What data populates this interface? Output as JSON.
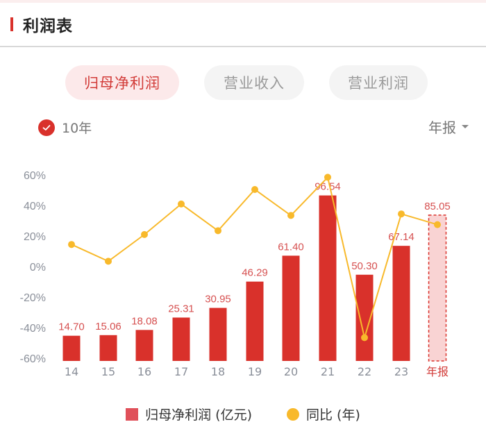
{
  "header": {
    "title": "利润表"
  },
  "tabs": [
    {
      "label": "归母净利润",
      "active": true
    },
    {
      "label": "营业收入",
      "active": false
    },
    {
      "label": "营业利润",
      "active": false
    }
  ],
  "range": {
    "label": "10年",
    "checked": true
  },
  "period": {
    "label": "年报"
  },
  "legend": {
    "bar": "归母净利润 (亿元)",
    "line": "同比 (年)"
  },
  "colors": {
    "accent": "#d9312b",
    "bar": "#d9312b",
    "bar_label": "#d65050",
    "line": "#f8b92b",
    "forecast_fill": "#f9d3d3",
    "axis_text": "#8a8f99"
  },
  "chart_data": {
    "type": "bar+line",
    "title": "归母净利润",
    "categories": [
      "14",
      "15",
      "16",
      "17",
      "18",
      "19",
      "20",
      "21",
      "22",
      "23",
      "年报"
    ],
    "series": [
      {
        "name": "归母净利润 (亿元)",
        "type": "bar",
        "values": [
          14.7,
          15.06,
          18.08,
          25.31,
          30.95,
          46.29,
          61.4,
          96.54,
          50.3,
          67.14,
          85.05
        ],
        "labels": [
          "14.70",
          "15.06",
          "18.08",
          "25.31",
          "30.95",
          "46.29",
          "61.40",
          "96.54",
          "50.30",
          "67.14",
          "85.05"
        ]
      },
      {
        "name": "同比 (年)",
        "type": "line",
        "values": [
          14,
          3,
          20.5,
          40.5,
          23,
          50,
          33,
          58,
          -47,
          34,
          27
        ]
      }
    ],
    "yaxis_left": {
      "ticks": [
        "60%",
        "40%",
        "20%",
        "0%",
        "-20%",
        "-40%",
        "-60%"
      ],
      "range": [
        -60,
        60
      ]
    },
    "xlabel": "",
    "ylabel": "",
    "grid": false,
    "legend_position": "bottom"
  }
}
